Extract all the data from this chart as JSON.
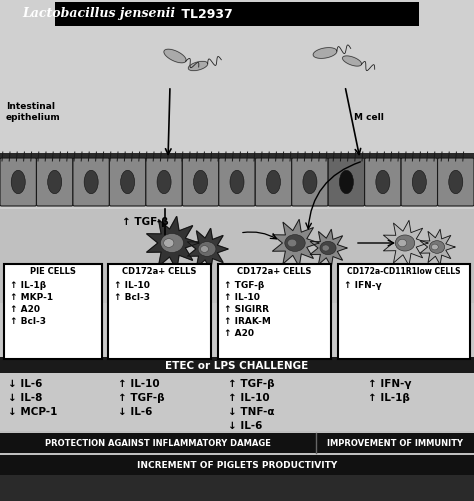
{
  "title_italic": "Lactobacillus jensenii",
  "title_bold": " TL2937",
  "intestinal_label": "Intestinal\nepithelium",
  "m_cell_label": "M cell",
  "tgf_label": "↑ TGF-β",
  "pie_cells_label": "PIE CELLS",
  "pie_cells_items": [
    [
      "↑",
      "IL-1β"
    ],
    [
      "↑",
      "MKP-1"
    ],
    [
      "↑",
      "A20"
    ],
    [
      "↑",
      "Bcl-3"
    ]
  ],
  "cd172a_1_label": "CD172a+ CELLS",
  "cd172a_1_items": [
    [
      "↑",
      "IL-10"
    ],
    [
      "↑",
      "Bcl-3"
    ]
  ],
  "cd172a_2_label": "CD172a+ CELLS",
  "cd172a_2_items": [
    [
      "↑",
      "TGF-β"
    ],
    [
      "↑",
      "IL-10"
    ],
    [
      "↑",
      "SIGIRR"
    ],
    [
      "↑",
      "IRAK-M"
    ],
    [
      "↑",
      "A20"
    ]
  ],
  "cd172a_cd11r1_label": "CD172a-CD11R1low CELLS",
  "cd172a_cd11r1_items": [
    [
      "↑",
      "IFN-γ"
    ]
  ],
  "etec_label": "ETEC or LPS CHALLENGE",
  "etec_col1": [
    [
      "↓",
      "IL-6"
    ],
    [
      "↓",
      "IL-8"
    ],
    [
      "↓",
      "MCP-1"
    ]
  ],
  "etec_col2": [
    [
      "↑",
      "IL-10"
    ],
    [
      "↑",
      "TGF-β"
    ],
    [
      "↓",
      "IL-6"
    ]
  ],
  "etec_col3": [
    [
      "↑",
      "TGF-β"
    ],
    [
      "↑",
      "IL-10"
    ],
    [
      "↓",
      "TNF-α"
    ],
    [
      "↓",
      "IL-6"
    ]
  ],
  "etec_col4": [
    [
      "↑",
      "IFN-γ"
    ],
    [
      "↑",
      "IL-1β"
    ]
  ],
  "bottom_left": "PROTECTION AGAINST INFLAMMATORY DAMAGE",
  "bottom_right": "IMPROVEMENT OF IMMUNITY",
  "bottom_center": "INCREMENT OF PIGLETS PRODUCTIVITY"
}
